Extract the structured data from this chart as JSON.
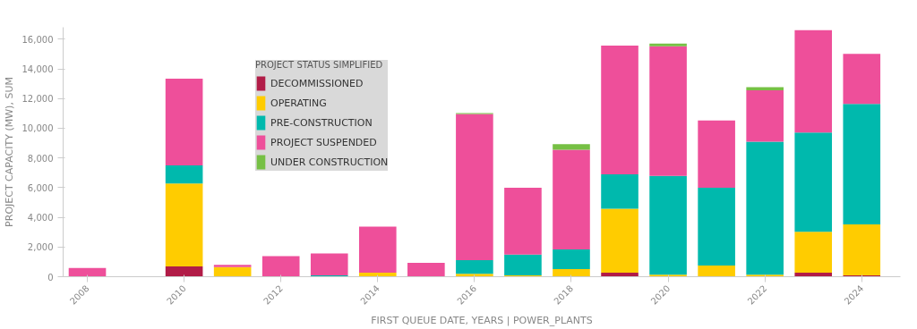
{
  "chart_data": {
    "type": "bar",
    "stacked": true,
    "xlabel": "FIRST QUEUE DATE, YEARS | POWER_PLANTS",
    "ylabel": "PROJECT CAPACITY (MW), SUM",
    "legend_title": "PROJECT STATUS SIMPLIFIED",
    "x": [
      2008,
      2010,
      2011,
      2012,
      2013,
      2014,
      2015,
      2016,
      2017,
      2018,
      2019,
      2020,
      2021,
      2022,
      2023,
      2024
    ],
    "series": [
      {
        "name": "DECOMMISSIONED",
        "color": "#b11c47",
        "values": [
          null,
          700,
          null,
          null,
          null,
          null,
          null,
          null,
          null,
          null,
          270,
          null,
          null,
          null,
          270,
          90
        ]
      },
      {
        "name": "OPERATING",
        "color": "#ffcc00",
        "values": [
          null,
          5580,
          650,
          null,
          null,
          270,
          null,
          200,
          90,
          510,
          4300,
          130,
          760,
          130,
          2760,
          3430
        ]
      },
      {
        "name": "PRE-CONSTRUCTION",
        "color": "#00b9ad",
        "values": [
          null,
          1220,
          null,
          null,
          90,
          null,
          null,
          910,
          1400,
          1320,
          2330,
          6660,
          5230,
          8960,
          6680,
          8110
        ]
      },
      {
        "name": "PROJECT SUSPENDED",
        "color": "#ee4f9a",
        "values": [
          580,
          5840,
          150,
          1380,
          1470,
          3100,
          940,
          9850,
          4500,
          6720,
          8670,
          8730,
          4540,
          3470,
          6900,
          3380
        ]
      },
      {
        "name": "UNDER CONSTRUCTION",
        "color": "#76c044",
        "values": [
          null,
          null,
          null,
          null,
          null,
          null,
          null,
          60,
          null,
          380,
          null,
          180,
          null,
          200,
          null,
          null
        ]
      }
    ],
    "xlim": [
      2007.5,
      2024.8
    ],
    "xticks": [
      2008,
      2010,
      2012,
      2014,
      2016,
      2018,
      2020,
      2022,
      2024
    ],
    "ylim": [
      0,
      16800
    ],
    "yticks": [
      0,
      {
        "value": 2000,
        "label": "2,000"
      },
      {
        "value": 4000,
        "label": "4,000"
      },
      {
        "value": 6000,
        "label": "6,000"
      },
      {
        "value": 8000,
        "label": "8,000"
      },
      {
        "value": 10000,
        "label": "10,000"
      },
      {
        "value": 12000,
        "label": "12,000"
      },
      {
        "value": 14000,
        "label": "14,000"
      },
      {
        "value": 16000,
        "label": "16,000"
      }
    ],
    "grid": false,
    "legend": "top"
  }
}
